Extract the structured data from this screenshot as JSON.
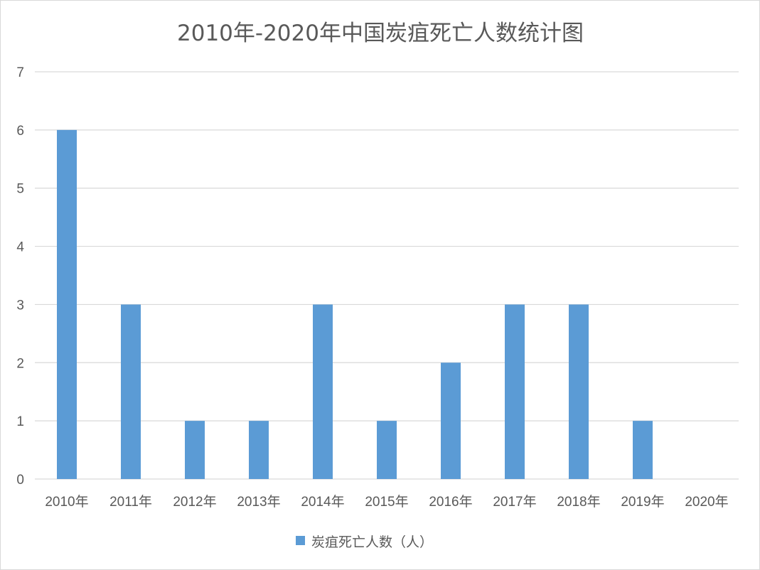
{
  "chart_data": {
    "type": "bar",
    "title": "2010年-2020年中国炭疽死亡人数统计图",
    "categories": [
      "2010年",
      "2011年",
      "2012年",
      "2013年",
      "2014年",
      "2015年",
      "2016年",
      "2017年",
      "2018年",
      "2019年",
      "2020年"
    ],
    "series": [
      {
        "name": "炭疽死亡人数（人）",
        "values": [
          6,
          3,
          1,
          1,
          3,
          1,
          2,
          3,
          3,
          1,
          0
        ]
      }
    ],
    "ylim": [
      0,
      7
    ],
    "yticks": [
      "0",
      "1",
      "2",
      "3",
      "4",
      "5",
      "6",
      "7"
    ],
    "grid": true,
    "legend": "bottom",
    "colors": {
      "bar": "#5b9bd5",
      "grid": "#d9d9d9",
      "text": "#595959"
    }
  }
}
